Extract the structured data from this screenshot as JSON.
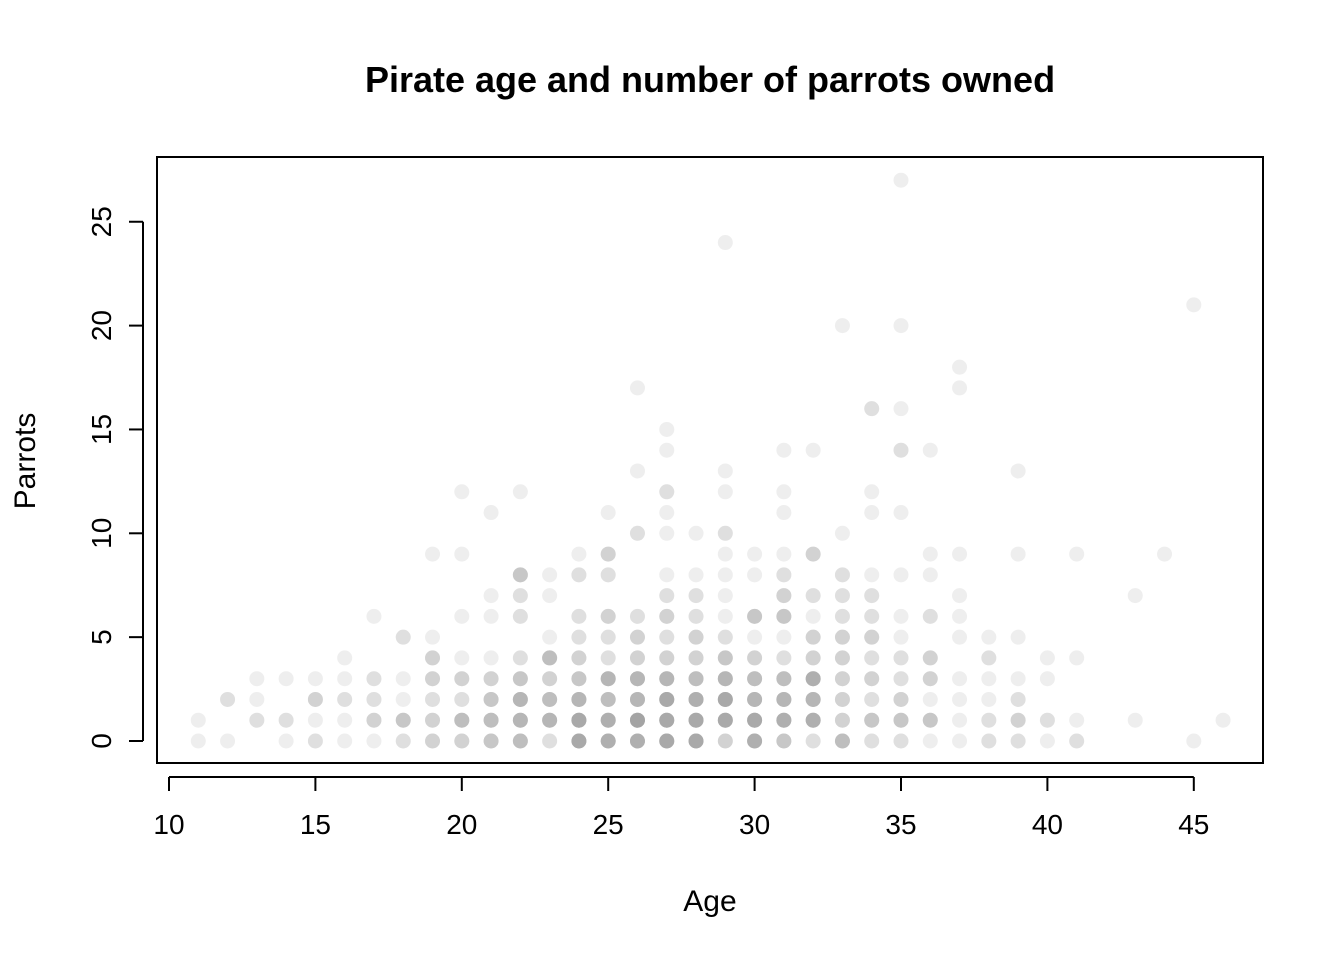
{
  "chart_data": {
    "type": "scatter",
    "title": "Pirate age and number of parrots owned",
    "xlabel": "Age",
    "ylabel": "Parrots",
    "xlim": [
      10,
      47
    ],
    "ylim": [
      0,
      27
    ],
    "x_ticks": [
      10,
      15,
      20,
      25,
      30,
      35,
      40,
      45
    ],
    "y_ticks": [
      0,
      5,
      10,
      15,
      20,
      25
    ],
    "grid": false,
    "point_color": "#888888",
    "point_style": "filled circles, translucent (overlapping points appear darker)",
    "points": [
      {
        "age": 11,
        "parrots": 0,
        "count": 1
      },
      {
        "age": 11,
        "parrots": 1,
        "count": 1
      },
      {
        "age": 12,
        "parrots": 0,
        "count": 1
      },
      {
        "age": 12,
        "parrots": 2,
        "count": 2
      },
      {
        "age": 13,
        "parrots": 1,
        "count": 2
      },
      {
        "age": 13,
        "parrots": 2,
        "count": 1
      },
      {
        "age": 13,
        "parrots": 3,
        "count": 1
      },
      {
        "age": 14,
        "parrots": 0,
        "count": 1
      },
      {
        "age": 14,
        "parrots": 1,
        "count": 2
      },
      {
        "age": 14,
        "parrots": 3,
        "count": 1
      },
      {
        "age": 15,
        "parrots": 0,
        "count": 2
      },
      {
        "age": 15,
        "parrots": 1,
        "count": 1
      },
      {
        "age": 15,
        "parrots": 2,
        "count": 3
      },
      {
        "age": 15,
        "parrots": 3,
        "count": 1
      },
      {
        "age": 16,
        "parrots": 0,
        "count": 1
      },
      {
        "age": 16,
        "parrots": 1,
        "count": 1
      },
      {
        "age": 16,
        "parrots": 2,
        "count": 2
      },
      {
        "age": 16,
        "parrots": 3,
        "count": 1
      },
      {
        "age": 16,
        "parrots": 4,
        "count": 1
      },
      {
        "age": 17,
        "parrots": 0,
        "count": 1
      },
      {
        "age": 17,
        "parrots": 1,
        "count": 3
      },
      {
        "age": 17,
        "parrots": 2,
        "count": 2
      },
      {
        "age": 17,
        "parrots": 3,
        "count": 2
      },
      {
        "age": 17,
        "parrots": 6,
        "count": 1
      },
      {
        "age": 18,
        "parrots": 0,
        "count": 2
      },
      {
        "age": 18,
        "parrots": 1,
        "count": 4
      },
      {
        "age": 18,
        "parrots": 2,
        "count": 1
      },
      {
        "age": 18,
        "parrots": 3,
        "count": 1
      },
      {
        "age": 18,
        "parrots": 5,
        "count": 2
      },
      {
        "age": 19,
        "parrots": 0,
        "count": 3
      },
      {
        "age": 19,
        "parrots": 1,
        "count": 3
      },
      {
        "age": 19,
        "parrots": 2,
        "count": 2
      },
      {
        "age": 19,
        "parrots": 3,
        "count": 3
      },
      {
        "age": 19,
        "parrots": 4,
        "count": 3
      },
      {
        "age": 19,
        "parrots": 5,
        "count": 1
      },
      {
        "age": 19,
        "parrots": 9,
        "count": 1
      },
      {
        "age": 20,
        "parrots": 0,
        "count": 3
      },
      {
        "age": 20,
        "parrots": 1,
        "count": 5
      },
      {
        "age": 20,
        "parrots": 2,
        "count": 2
      },
      {
        "age": 20,
        "parrots": 3,
        "count": 3
      },
      {
        "age": 20,
        "parrots": 4,
        "count": 1
      },
      {
        "age": 20,
        "parrots": 6,
        "count": 1
      },
      {
        "age": 20,
        "parrots": 9,
        "count": 1
      },
      {
        "age": 20,
        "parrots": 12,
        "count": 1
      },
      {
        "age": 21,
        "parrots": 0,
        "count": 4
      },
      {
        "age": 21,
        "parrots": 1,
        "count": 5
      },
      {
        "age": 21,
        "parrots": 2,
        "count": 4
      },
      {
        "age": 21,
        "parrots": 3,
        "count": 3
      },
      {
        "age": 21,
        "parrots": 4,
        "count": 1
      },
      {
        "age": 21,
        "parrots": 6,
        "count": 1
      },
      {
        "age": 21,
        "parrots": 7,
        "count": 1
      },
      {
        "age": 21,
        "parrots": 11,
        "count": 1
      },
      {
        "age": 22,
        "parrots": 0,
        "count": 5
      },
      {
        "age": 22,
        "parrots": 1,
        "count": 6
      },
      {
        "age": 22,
        "parrots": 2,
        "count": 6
      },
      {
        "age": 22,
        "parrots": 3,
        "count": 4
      },
      {
        "age": 22,
        "parrots": 4,
        "count": 2
      },
      {
        "age": 22,
        "parrots": 6,
        "count": 2
      },
      {
        "age": 22,
        "parrots": 7,
        "count": 2
      },
      {
        "age": 22,
        "parrots": 8,
        "count": 4
      },
      {
        "age": 22,
        "parrots": 12,
        "count": 1
      },
      {
        "age": 23,
        "parrots": 0,
        "count": 2
      },
      {
        "age": 23,
        "parrots": 1,
        "count": 6
      },
      {
        "age": 23,
        "parrots": 2,
        "count": 5
      },
      {
        "age": 23,
        "parrots": 3,
        "count": 3
      },
      {
        "age": 23,
        "parrots": 4,
        "count": 5
      },
      {
        "age": 23,
        "parrots": 5,
        "count": 1
      },
      {
        "age": 23,
        "parrots": 7,
        "count": 1
      },
      {
        "age": 23,
        "parrots": 8,
        "count": 1
      },
      {
        "age": 24,
        "parrots": 0,
        "count": 8
      },
      {
        "age": 24,
        "parrots": 1,
        "count": 8
      },
      {
        "age": 24,
        "parrots": 2,
        "count": 6
      },
      {
        "age": 24,
        "parrots": 3,
        "count": 4
      },
      {
        "age": 24,
        "parrots": 4,
        "count": 3
      },
      {
        "age": 24,
        "parrots": 5,
        "count": 2
      },
      {
        "age": 24,
        "parrots": 6,
        "count": 2
      },
      {
        "age": 24,
        "parrots": 8,
        "count": 2
      },
      {
        "age": 24,
        "parrots": 9,
        "count": 1
      },
      {
        "age": 25,
        "parrots": 0,
        "count": 7
      },
      {
        "age": 25,
        "parrots": 1,
        "count": 7
      },
      {
        "age": 25,
        "parrots": 2,
        "count": 5
      },
      {
        "age": 25,
        "parrots": 3,
        "count": 6
      },
      {
        "age": 25,
        "parrots": 4,
        "count": 2
      },
      {
        "age": 25,
        "parrots": 5,
        "count": 2
      },
      {
        "age": 25,
        "parrots": 6,
        "count": 3
      },
      {
        "age": 25,
        "parrots": 8,
        "count": 2
      },
      {
        "age": 25,
        "parrots": 9,
        "count": 3
      },
      {
        "age": 25,
        "parrots": 11,
        "count": 1
      },
      {
        "age": 26,
        "parrots": 0,
        "count": 7
      },
      {
        "age": 26,
        "parrots": 1,
        "count": 9
      },
      {
        "age": 26,
        "parrots": 2,
        "count": 6
      },
      {
        "age": 26,
        "parrots": 3,
        "count": 6
      },
      {
        "age": 26,
        "parrots": 4,
        "count": 3
      },
      {
        "age": 26,
        "parrots": 5,
        "count": 3
      },
      {
        "age": 26,
        "parrots": 6,
        "count": 2
      },
      {
        "age": 26,
        "parrots": 10,
        "count": 2
      },
      {
        "age": 26,
        "parrots": 13,
        "count": 1
      },
      {
        "age": 26,
        "parrots": 17,
        "count": 1
      },
      {
        "age": 27,
        "parrots": 0,
        "count": 8
      },
      {
        "age": 27,
        "parrots": 1,
        "count": 8
      },
      {
        "age": 27,
        "parrots": 2,
        "count": 8
      },
      {
        "age": 27,
        "parrots": 3,
        "count": 6
      },
      {
        "age": 27,
        "parrots": 4,
        "count": 3
      },
      {
        "age": 27,
        "parrots": 5,
        "count": 2
      },
      {
        "age": 27,
        "parrots": 6,
        "count": 3
      },
      {
        "age": 27,
        "parrots": 7,
        "count": 2
      },
      {
        "age": 27,
        "parrots": 8,
        "count": 1
      },
      {
        "age": 27,
        "parrots": 10,
        "count": 1
      },
      {
        "age": 27,
        "parrots": 11,
        "count": 1
      },
      {
        "age": 27,
        "parrots": 12,
        "count": 2
      },
      {
        "age": 27,
        "parrots": 14,
        "count": 1
      },
      {
        "age": 27,
        "parrots": 15,
        "count": 1
      },
      {
        "age": 28,
        "parrots": 0,
        "count": 8
      },
      {
        "age": 28,
        "parrots": 1,
        "count": 8
      },
      {
        "age": 28,
        "parrots": 2,
        "count": 7
      },
      {
        "age": 28,
        "parrots": 3,
        "count": 5
      },
      {
        "age": 28,
        "parrots": 4,
        "count": 3
      },
      {
        "age": 28,
        "parrots": 5,
        "count": 3
      },
      {
        "age": 28,
        "parrots": 6,
        "count": 2
      },
      {
        "age": 28,
        "parrots": 7,
        "count": 2
      },
      {
        "age": 28,
        "parrots": 8,
        "count": 1
      },
      {
        "age": 28,
        "parrots": 10,
        "count": 1
      },
      {
        "age": 29,
        "parrots": 0,
        "count": 3
      },
      {
        "age": 29,
        "parrots": 1,
        "count": 8
      },
      {
        "age": 29,
        "parrots": 2,
        "count": 8
      },
      {
        "age": 29,
        "parrots": 3,
        "count": 6
      },
      {
        "age": 29,
        "parrots": 4,
        "count": 4
      },
      {
        "age": 29,
        "parrots": 5,
        "count": 2
      },
      {
        "age": 29,
        "parrots": 6,
        "count": 1
      },
      {
        "age": 29,
        "parrots": 7,
        "count": 1
      },
      {
        "age": 29,
        "parrots": 8,
        "count": 1
      },
      {
        "age": 29,
        "parrots": 9,
        "count": 1
      },
      {
        "age": 29,
        "parrots": 10,
        "count": 2
      },
      {
        "age": 29,
        "parrots": 12,
        "count": 1
      },
      {
        "age": 29,
        "parrots": 13,
        "count": 1
      },
      {
        "age": 29,
        "parrots": 24,
        "count": 1
      },
      {
        "age": 30,
        "parrots": 0,
        "count": 7
      },
      {
        "age": 30,
        "parrots": 1,
        "count": 8
      },
      {
        "age": 30,
        "parrots": 2,
        "count": 6
      },
      {
        "age": 30,
        "parrots": 3,
        "count": 5
      },
      {
        "age": 30,
        "parrots": 4,
        "count": 3
      },
      {
        "age": 30,
        "parrots": 5,
        "count": 1
      },
      {
        "age": 30,
        "parrots": 6,
        "count": 4
      },
      {
        "age": 30,
        "parrots": 8,
        "count": 1
      },
      {
        "age": 30,
        "parrots": 9,
        "count": 1
      },
      {
        "age": 31,
        "parrots": 0,
        "count": 4
      },
      {
        "age": 31,
        "parrots": 1,
        "count": 7
      },
      {
        "age": 31,
        "parrots": 2,
        "count": 6
      },
      {
        "age": 31,
        "parrots": 3,
        "count": 5
      },
      {
        "age": 31,
        "parrots": 4,
        "count": 2
      },
      {
        "age": 31,
        "parrots": 5,
        "count": 1
      },
      {
        "age": 31,
        "parrots": 6,
        "count": 4
      },
      {
        "age": 31,
        "parrots": 7,
        "count": 3
      },
      {
        "age": 31,
        "parrots": 8,
        "count": 2
      },
      {
        "age": 31,
        "parrots": 9,
        "count": 1
      },
      {
        "age": 31,
        "parrots": 11,
        "count": 1
      },
      {
        "age": 31,
        "parrots": 12,
        "count": 1
      },
      {
        "age": 31,
        "parrots": 14,
        "count": 1
      },
      {
        "age": 32,
        "parrots": 0,
        "count": 2
      },
      {
        "age": 32,
        "parrots": 1,
        "count": 7
      },
      {
        "age": 32,
        "parrots": 2,
        "count": 6
      },
      {
        "age": 32,
        "parrots": 3,
        "count": 7
      },
      {
        "age": 32,
        "parrots": 4,
        "count": 3
      },
      {
        "age": 32,
        "parrots": 5,
        "count": 3
      },
      {
        "age": 32,
        "parrots": 6,
        "count": 1
      },
      {
        "age": 32,
        "parrots": 7,
        "count": 2
      },
      {
        "age": 32,
        "parrots": 9,
        "count": 3
      },
      {
        "age": 32,
        "parrots": 14,
        "count": 1
      },
      {
        "age": 33,
        "parrots": 0,
        "count": 5
      },
      {
        "age": 33,
        "parrots": 1,
        "count": 3
      },
      {
        "age": 33,
        "parrots": 2,
        "count": 3
      },
      {
        "age": 33,
        "parrots": 3,
        "count": 3
      },
      {
        "age": 33,
        "parrots": 4,
        "count": 3
      },
      {
        "age": 33,
        "parrots": 5,
        "count": 3
      },
      {
        "age": 33,
        "parrots": 6,
        "count": 2
      },
      {
        "age": 33,
        "parrots": 7,
        "count": 2
      },
      {
        "age": 33,
        "parrots": 8,
        "count": 2
      },
      {
        "age": 33,
        "parrots": 10,
        "count": 1
      },
      {
        "age": 33,
        "parrots": 20,
        "count": 1
      },
      {
        "age": 34,
        "parrots": 0,
        "count": 2
      },
      {
        "age": 34,
        "parrots": 1,
        "count": 4
      },
      {
        "age": 34,
        "parrots": 2,
        "count": 2
      },
      {
        "age": 34,
        "parrots": 3,
        "count": 3
      },
      {
        "age": 34,
        "parrots": 4,
        "count": 2
      },
      {
        "age": 34,
        "parrots": 5,
        "count": 3
      },
      {
        "age": 34,
        "parrots": 6,
        "count": 2
      },
      {
        "age": 34,
        "parrots": 7,
        "count": 2
      },
      {
        "age": 34,
        "parrots": 8,
        "count": 1
      },
      {
        "age": 34,
        "parrots": 11,
        "count": 1
      },
      {
        "age": 34,
        "parrots": 12,
        "count": 1
      },
      {
        "age": 34,
        "parrots": 16,
        "count": 2
      },
      {
        "age": 35,
        "parrots": 0,
        "count": 2
      },
      {
        "age": 35,
        "parrots": 1,
        "count": 4
      },
      {
        "age": 35,
        "parrots": 2,
        "count": 3
      },
      {
        "age": 35,
        "parrots": 3,
        "count": 2
      },
      {
        "age": 35,
        "parrots": 4,
        "count": 2
      },
      {
        "age": 35,
        "parrots": 5,
        "count": 1
      },
      {
        "age": 35,
        "parrots": 6,
        "count": 1
      },
      {
        "age": 35,
        "parrots": 8,
        "count": 1
      },
      {
        "age": 35,
        "parrots": 11,
        "count": 1
      },
      {
        "age": 35,
        "parrots": 14,
        "count": 2
      },
      {
        "age": 35,
        "parrots": 16,
        "count": 1
      },
      {
        "age": 35,
        "parrots": 20,
        "count": 1
      },
      {
        "age": 35,
        "parrots": 27,
        "count": 1
      },
      {
        "age": 36,
        "parrots": 0,
        "count": 1
      },
      {
        "age": 36,
        "parrots": 1,
        "count": 4
      },
      {
        "age": 36,
        "parrots": 2,
        "count": 1
      },
      {
        "age": 36,
        "parrots": 3,
        "count": 3
      },
      {
        "age": 36,
        "parrots": 4,
        "count": 3
      },
      {
        "age": 36,
        "parrots": 6,
        "count": 2
      },
      {
        "age": 36,
        "parrots": 8,
        "count": 1
      },
      {
        "age": 36,
        "parrots": 9,
        "count": 1
      },
      {
        "age": 36,
        "parrots": 14,
        "count": 1
      },
      {
        "age": 37,
        "parrots": 0,
        "count": 1
      },
      {
        "age": 37,
        "parrots": 1,
        "count": 1
      },
      {
        "age": 37,
        "parrots": 2,
        "count": 1
      },
      {
        "age": 37,
        "parrots": 3,
        "count": 1
      },
      {
        "age": 37,
        "parrots": 5,
        "count": 1
      },
      {
        "age": 37,
        "parrots": 6,
        "count": 1
      },
      {
        "age": 37,
        "parrots": 7,
        "count": 1
      },
      {
        "age": 37,
        "parrots": 9,
        "count": 1
      },
      {
        "age": 37,
        "parrots": 17,
        "count": 1
      },
      {
        "age": 37,
        "parrots": 18,
        "count": 1
      },
      {
        "age": 38,
        "parrots": 0,
        "count": 2
      },
      {
        "age": 38,
        "parrots": 1,
        "count": 2
      },
      {
        "age": 38,
        "parrots": 2,
        "count": 1
      },
      {
        "age": 38,
        "parrots": 3,
        "count": 1
      },
      {
        "age": 38,
        "parrots": 4,
        "count": 2
      },
      {
        "age": 38,
        "parrots": 5,
        "count": 1
      },
      {
        "age": 39,
        "parrots": 0,
        "count": 2
      },
      {
        "age": 39,
        "parrots": 1,
        "count": 3
      },
      {
        "age": 39,
        "parrots": 2,
        "count": 2
      },
      {
        "age": 39,
        "parrots": 3,
        "count": 1
      },
      {
        "age": 39,
        "parrots": 5,
        "count": 1
      },
      {
        "age": 39,
        "parrots": 9,
        "count": 1
      },
      {
        "age": 39,
        "parrots": 13,
        "count": 1
      },
      {
        "age": 40,
        "parrots": 0,
        "count": 1
      },
      {
        "age": 40,
        "parrots": 1,
        "count": 2
      },
      {
        "age": 40,
        "parrots": 3,
        "count": 1
      },
      {
        "age": 40,
        "parrots": 4,
        "count": 1
      },
      {
        "age": 41,
        "parrots": 0,
        "count": 2
      },
      {
        "age": 41,
        "parrots": 1,
        "count": 1
      },
      {
        "age": 41,
        "parrots": 4,
        "count": 1
      },
      {
        "age": 41,
        "parrots": 9,
        "count": 1
      },
      {
        "age": 43,
        "parrots": 1,
        "count": 1
      },
      {
        "age": 43,
        "parrots": 7,
        "count": 1
      },
      {
        "age": 44,
        "parrots": 9,
        "count": 1
      },
      {
        "age": 45,
        "parrots": 0,
        "count": 1
      },
      {
        "age": 45,
        "parrots": 21,
        "count": 1
      },
      {
        "age": 46,
        "parrots": 1,
        "count": 1
      }
    ]
  }
}
